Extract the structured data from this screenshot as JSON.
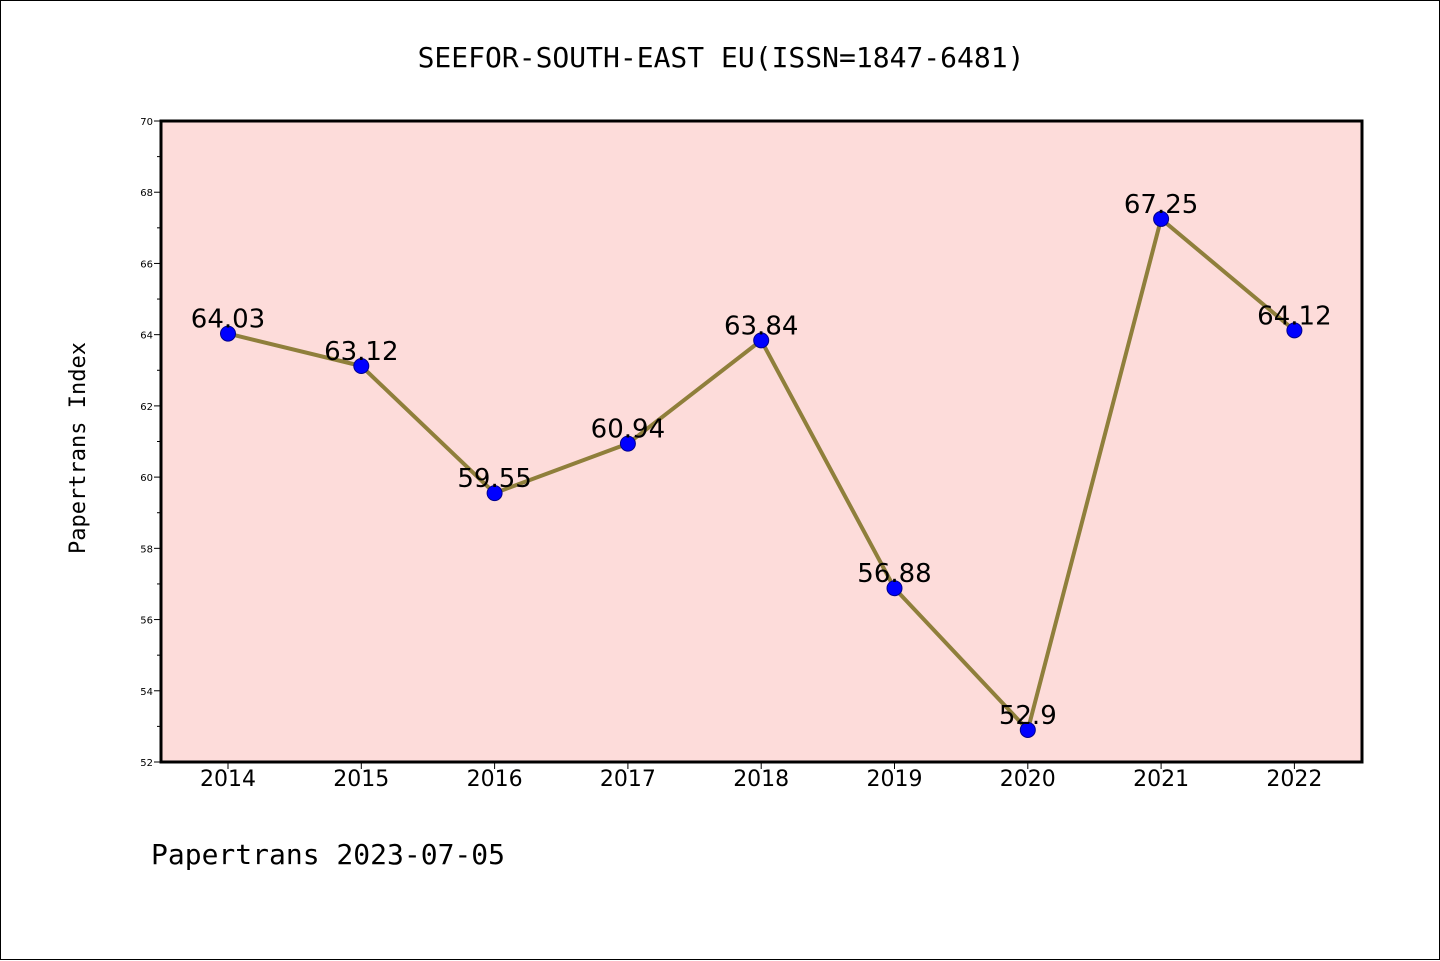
{
  "title": "SEEFOR-SOUTH-EAST EU(ISSN=1847-6481)",
  "footer": "Papertrans 2023-07-05",
  "colors": {
    "plot_background": "#fddcda",
    "line": "#8f7f3b",
    "marker": "#0000ff",
    "marker_edge": "#00008b",
    "axis": "#000000"
  },
  "chart_data": {
    "type": "line",
    "title": "SEEFOR-SOUTH-EAST EU(ISSN=1847-6481)",
    "xlabel": "",
    "ylabel": "Papertrans Index",
    "categories": [
      "2014",
      "2015",
      "2016",
      "2017",
      "2018",
      "2019",
      "2020",
      "2021",
      "2022"
    ],
    "series": [
      {
        "values": [
          64.03,
          63.12,
          59.55,
          60.94,
          63.84,
          56.88,
          52.9,
          67.25,
          64.12
        ],
        "labels": [
          "64.03",
          "63.12",
          "59.55",
          "60.94",
          "63.84",
          "56.88",
          "52.9",
          "67.25",
          "64.12"
        ]
      }
    ],
    "ylim": [
      52,
      70
    ],
    "yticks": [
      52,
      54,
      56,
      58,
      60,
      62,
      64,
      66,
      68,
      70
    ],
    "grid": false,
    "legend": "none"
  }
}
